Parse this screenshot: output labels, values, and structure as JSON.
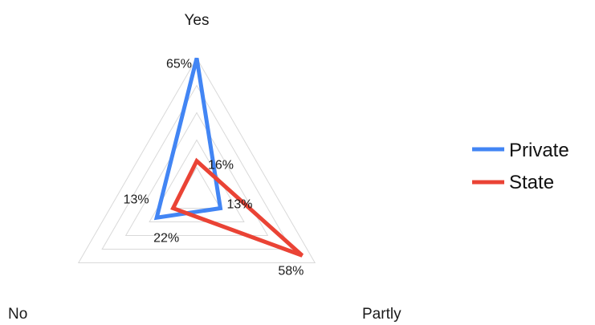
{
  "chart_data": {
    "type": "radar",
    "title": "",
    "axes": [
      "Yes",
      "Partly",
      "No"
    ],
    "range": [
      0,
      65
    ],
    "grid": true,
    "grid_rings": 5,
    "legend_position": "right",
    "series": [
      {
        "name": "Private",
        "color": "#4285f4",
        "values": [
          65,
          13,
          22
        ],
        "labels": [
          "65%",
          "13%",
          "22%"
        ]
      },
      {
        "name": "State",
        "color": "#ea4335",
        "values": [
          16,
          58,
          13
        ],
        "labels": [
          "16%",
          "58%",
          "13%"
        ]
      }
    ]
  }
}
